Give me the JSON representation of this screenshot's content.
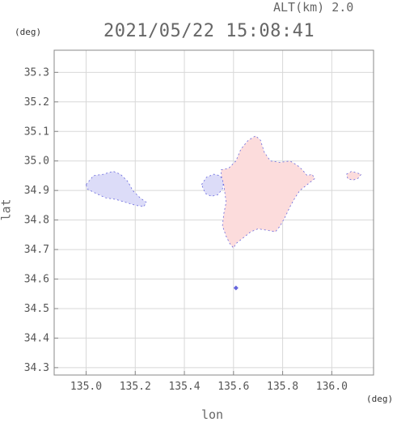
{
  "header": {
    "alt_label": "ALT(km) 2.0",
    "timestamp": "2021/05/22 15:08:41"
  },
  "chart_data": {
    "type": "heatmap",
    "title": "2021/05/22 15:08:41",
    "xlabel": "lon",
    "ylabel": "lat",
    "x_unit": "(deg)",
    "y_unit": "(deg)",
    "xlim": [
      134.87,
      136.17
    ],
    "ylim": [
      34.275,
      35.375
    ],
    "x_ticks": [
      135.0,
      135.2,
      135.4,
      135.6,
      135.8,
      136.0
    ],
    "x_tick_labels": [
      "135.0",
      "135.2",
      "135.4",
      "135.6",
      "135.8",
      "136.0"
    ],
    "y_ticks": [
      34.3,
      34.4,
      34.5,
      34.6,
      34.7,
      34.8,
      34.9,
      35.0,
      35.1,
      35.2,
      35.3
    ],
    "y_tick_labels": [
      "34.3",
      "34.4",
      "34.5",
      "34.6",
      "34.7",
      "34.8",
      "34.9",
      "35.0",
      "35.1",
      "35.2",
      "35.3"
    ],
    "grid": true,
    "colors": {
      "negative_fill": "#dcdcf8",
      "positive_fill": "#fcdcdc",
      "edge": "#6666dd",
      "frame": "#888888",
      "grid": "#d8d8d8"
    },
    "regions": [
      {
        "sign": "negative",
        "lonlat": [
          [
            135.0,
            34.92
          ],
          [
            135.03,
            34.95
          ],
          [
            135.07,
            34.955
          ],
          [
            135.11,
            34.965
          ],
          [
            135.14,
            34.955
          ],
          [
            135.17,
            34.93
          ],
          [
            135.19,
            34.9
          ],
          [
            135.22,
            34.875
          ],
          [
            135.245,
            34.86
          ],
          [
            135.235,
            34.845
          ],
          [
            135.2,
            34.85
          ],
          [
            135.16,
            34.86
          ],
          [
            135.12,
            34.87
          ],
          [
            135.08,
            34.875
          ],
          [
            135.04,
            34.89
          ],
          [
            135.005,
            34.905
          ]
        ]
      },
      {
        "sign": "negative",
        "lonlat": [
          [
            135.47,
            34.92
          ],
          [
            135.49,
            34.945
          ],
          [
            135.52,
            34.955
          ],
          [
            135.545,
            34.95
          ],
          [
            135.56,
            34.93
          ],
          [
            135.555,
            34.905
          ],
          [
            135.535,
            34.885
          ],
          [
            135.51,
            34.88
          ],
          [
            135.485,
            34.89
          ]
        ]
      },
      {
        "sign": "positive",
        "lonlat": [
          [
            135.55,
            34.97
          ],
          [
            135.58,
            34.975
          ],
          [
            135.61,
            35.0
          ],
          [
            135.63,
            35.04
          ],
          [
            135.66,
            35.07
          ],
          [
            135.69,
            35.085
          ],
          [
            135.71,
            35.07
          ],
          [
            135.725,
            35.03
          ],
          [
            135.75,
            35.0
          ],
          [
            135.79,
            34.995
          ],
          [
            135.83,
            35.0
          ],
          [
            135.86,
            34.985
          ],
          [
            135.88,
            34.97
          ],
          [
            135.9,
            34.95
          ],
          [
            135.92,
            34.955
          ],
          [
            135.93,
            34.94
          ],
          [
            135.9,
            34.92
          ],
          [
            135.87,
            34.9
          ],
          [
            135.85,
            34.875
          ],
          [
            135.83,
            34.845
          ],
          [
            135.81,
            34.81
          ],
          [
            135.79,
            34.78
          ],
          [
            135.77,
            34.76
          ],
          [
            135.74,
            34.765
          ],
          [
            135.7,
            34.77
          ],
          [
            135.67,
            34.76
          ],
          [
            135.64,
            34.74
          ],
          [
            135.61,
            34.72
          ],
          [
            135.6,
            34.705
          ],
          [
            135.585,
            34.72
          ],
          [
            135.57,
            34.745
          ],
          [
            135.555,
            34.78
          ],
          [
            135.56,
            34.82
          ],
          [
            135.57,
            34.86
          ],
          [
            135.565,
            34.89
          ],
          [
            135.56,
            34.92
          ],
          [
            135.55,
            34.95
          ]
        ]
      },
      {
        "sign": "positive",
        "lonlat": [
          [
            136.06,
            34.955
          ],
          [
            136.08,
            34.965
          ],
          [
            136.1,
            34.96
          ],
          [
            136.12,
            34.955
          ],
          [
            136.105,
            34.94
          ],
          [
            136.085,
            34.935
          ],
          [
            136.065,
            34.94
          ]
        ]
      }
    ],
    "points": [
      {
        "lon": 135.61,
        "lat": 34.57,
        "sign": "negative"
      }
    ]
  }
}
